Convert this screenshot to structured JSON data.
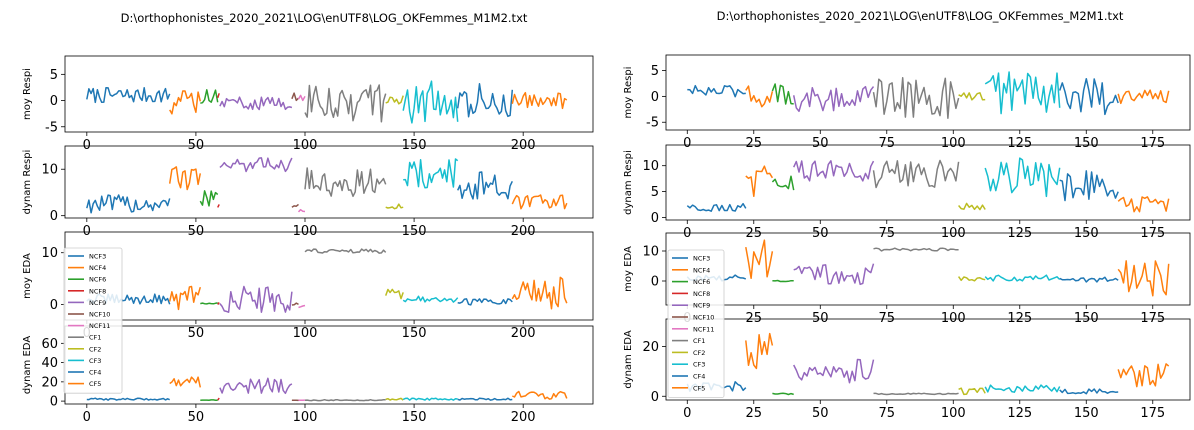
{
  "figures": [
    {
      "title": "D:\\orthophonistes_2020_2021\\LOG\\enUTF8\\LOG_OKFemmes_M1M2.txt"
    },
    {
      "title": "D:\\orthophonistes_2020_2021\\LOG\\enUTF8\\LOG_OKFemmes_M2M1.txt"
    }
  ],
  "colors": {
    "NCF3": "#1f77b4",
    "NCF4": "#ff7f0e",
    "NCF6": "#2ca02c",
    "NCF8": "#d62728",
    "NCF9": "#9467bd",
    "NCF10": "#8c564b",
    "NCF11": "#e377c2",
    "CF1": "#7f7f7f",
    "CF2": "#bcbd22",
    "CF3": "#17becf",
    "CF4": "#1f77b4",
    "CF5": "#ff7f0e"
  },
  "chart_data": [
    {
      "type": "line",
      "title": "D:\\orthophonistes_2020_2021\\LOG\\enUTF8\\LOG_OKFemmes_M1M2.txt",
      "xlim": [
        -10,
        232
      ],
      "xticks": [
        0,
        50,
        100,
        150,
        200
      ],
      "segments": [
        {
          "name": "NCF3",
          "x0": 0,
          "x1": 38,
          "pts": 40
        },
        {
          "name": "NCF4",
          "x0": 38,
          "x1": 52,
          "pts": 15
        },
        {
          "name": "NCF6",
          "x0": 52,
          "x1": 60,
          "pts": 9
        },
        {
          "name": "NCF8",
          "x0": 60,
          "x1": 60,
          "pts": 1
        },
        {
          "name": "NCF9",
          "x0": 61,
          "x1": 94,
          "pts": 34
        },
        {
          "name": "NCF10",
          "x0": 94,
          "x1": 97,
          "pts": 4
        },
        {
          "name": "NCF11",
          "x0": 97,
          "x1": 100,
          "pts": 4
        },
        {
          "name": "CF1",
          "x0": 100,
          "x1": 137,
          "pts": 38
        },
        {
          "name": "CF2",
          "x0": 137,
          "x1": 145,
          "pts": 9
        },
        {
          "name": "CF3",
          "x0": 145,
          "x1": 170,
          "pts": 26
        },
        {
          "name": "CF4",
          "x0": 170,
          "x1": 195,
          "pts": 26
        },
        {
          "name": "CF5",
          "x0": 195,
          "x1": 220,
          "pts": 26
        }
      ],
      "subplots": [
        {
          "ylabel": "moy Respi",
          "ylim": [
            -6,
            8.5
          ],
          "yticks": [
            -5,
            0,
            5
          ],
          "levels": {
            "NCF3": [
              1,
              1.5
            ],
            "NCF4": [
              -0.5,
              2.5
            ],
            "NCF6": [
              0.5,
              2
            ],
            "NCF8": [
              1,
              1
            ],
            "NCF9": [
              -0.5,
              1.2
            ],
            "NCF10": [
              0.8,
              1
            ],
            "NCF11": [
              0.5,
              0.5
            ],
            "CF1": [
              -0.5,
              4
            ],
            "CF2": [
              0,
              1
            ],
            "CF3": [
              0,
              4.5
            ],
            "CF4": [
              0,
              3.5
            ],
            "CF5": [
              0,
              1.5
            ]
          }
        },
        {
          "ylabel": "dynam Respi",
          "ylim": [
            -0.5,
            15
          ],
          "yticks": [
            0,
            10
          ],
          "levels": {
            "NCF3": [
              2.5,
              2
            ],
            "NCF4": [
              8,
              2.5
            ],
            "NCF6": [
              4,
              2
            ],
            "NCF8": [
              2,
              0.5
            ],
            "NCF9": [
              11,
              1.5
            ],
            "NCF10": [
              2,
              0.5
            ],
            "NCF11": [
              1,
              0.5
            ],
            "CF1": [
              7,
              3.5
            ],
            "CF2": [
              2,
              0.5
            ],
            "CF3": [
              9,
              3.5
            ],
            "CF4": [
              6.5,
              3
            ],
            "CF5": [
              3,
              1.5
            ]
          }
        },
        {
          "ylabel": "moy EDA",
          "ylim": [
            -3,
            14
          ],
          "yticks": [
            0,
            10
          ],
          "levels": {
            "NCF3": [
              1,
              1
            ],
            "NCF4": [
              1.5,
              2.5
            ],
            "NCF6": [
              0.2,
              0.1
            ],
            "NCF8": [
              0,
              0
            ],
            "NCF9": [
              1,
              2.5
            ],
            "NCF10": [
              0,
              0.3
            ],
            "NCF11": [
              -0.5,
              0.3
            ],
            "CF1": [
              10.3,
              0.4
            ],
            "CF2": [
              2,
              1
            ],
            "CF3": [
              1,
              0.6
            ],
            "CF4": [
              0.5,
              0.6
            ],
            "CF5": [
              2,
              3.5
            ]
          }
        },
        {
          "ylabel": "dynam EDA",
          "ylim": [
            -3,
            78
          ],
          "yticks": [
            0,
            20,
            40,
            60
          ],
          "levels": {
            "NCF3": [
              2,
              1
            ],
            "NCF4": [
              20,
              6
            ],
            "NCF6": [
              1,
              0.3
            ],
            "NCF8": [
              1,
              0.3
            ],
            "NCF9": [
              16,
              8
            ],
            "NCF10": [
              1,
              0.3
            ],
            "NCF11": [
              1,
              0.3
            ],
            "CF1": [
              1,
              0.5
            ],
            "CF2": [
              2,
              1
            ],
            "CF3": [
              2,
              1
            ],
            "CF4": [
              2,
              1
            ],
            "CF5": [
              6,
              4
            ]
          }
        }
      ],
      "legend": [
        "NCF3",
        "NCF4",
        "NCF6",
        "NCF8",
        "NCF9",
        "NCF10",
        "NCF11",
        "CF1",
        "CF2",
        "CF3",
        "CF4",
        "CF5"
      ]
    },
    {
      "type": "line",
      "title": "D:\\orthophonistes_2020_2021\\LOG\\enUTF8\\LOG_OKFemmes_M2M1.txt",
      "xlim": [
        -8,
        189
      ],
      "xticks": [
        0,
        25,
        50,
        75,
        100,
        125,
        150,
        175
      ],
      "segments": [
        {
          "name": "NCF3",
          "x0": 0,
          "x1": 22,
          "pts": 23
        },
        {
          "name": "NCF4",
          "x0": 22,
          "x1": 32,
          "pts": 11
        },
        {
          "name": "NCF6",
          "x0": 32,
          "x1": 40,
          "pts": 9
        },
        {
          "name": "NCF9",
          "x0": 40,
          "x1": 70,
          "pts": 31
        },
        {
          "name": "CF1",
          "x0": 70,
          "x1": 102,
          "pts": 33
        },
        {
          "name": "CF2",
          "x0": 102,
          "x1": 112,
          "pts": 11
        },
        {
          "name": "CF3",
          "x0": 112,
          "x1": 140,
          "pts": 29
        },
        {
          "name": "CF4",
          "x0": 140,
          "x1": 162,
          "pts": 23
        },
        {
          "name": "CF5",
          "x0": 162,
          "x1": 181,
          "pts": 20
        }
      ],
      "subplots": [
        {
          "ylabel": "moy Respi",
          "ylim": [
            -6.5,
            8
          ],
          "yticks": [
            -5,
            0,
            5
          ],
          "levels": {
            "NCF3": [
              1,
              1.2
            ],
            "NCF4": [
              0.5,
              2.5
            ],
            "NCF6": [
              0.5,
              2
            ],
            "NCF9": [
              -0.5,
              2.5
            ],
            "CF1": [
              -0.5,
              4.5
            ],
            "CF2": [
              0,
              1
            ],
            "CF3": [
              1,
              4.5
            ],
            "CF4": [
              0,
              3.5
            ],
            "CF5": [
              0,
              1.5
            ]
          }
        },
        {
          "ylabel": "dynam Respi",
          "ylim": [
            -0.5,
            14
          ],
          "yticks": [
            0,
            5,
            10
          ],
          "levels": {
            "NCF3": [
              2,
              0.8
            ],
            "NCF4": [
              7,
              3
            ],
            "NCF6": [
              6,
              2.5
            ],
            "NCF9": [
              9,
              2
            ],
            "CF1": [
              8,
              3
            ],
            "CF2": [
              2,
              0.8
            ],
            "CF3": [
              8,
              4
            ],
            "CF4": [
              6,
              3
            ],
            "CF5": [
              2.5,
              1.5
            ]
          }
        },
        {
          "ylabel": "moy EDA",
          "ylim": [
            -8,
            16
          ],
          "yticks": [
            0,
            10
          ],
          "levels": {
            "NCF3": [
              1,
              1
            ],
            "NCF4": [
              8,
              8
            ],
            "NCF6": [
              0,
              0.2
            ],
            "NCF9": [
              2,
              4
            ],
            "CF1": [
              10.5,
              0.5
            ],
            "CF2": [
              1,
              1
            ],
            "CF3": [
              1,
              1
            ],
            "CF4": [
              0.5,
              0.8
            ],
            "CF5": [
              1,
              6
            ]
          }
        },
        {
          "ylabel": "dynam EDA",
          "ylim": [
            -1.5,
            31
          ],
          "yticks": [
            0,
            20
          ],
          "levels": {
            "NCF3": [
              4,
              2
            ],
            "NCF4": [
              18,
              9
            ],
            "NCF6": [
              1,
              0.3
            ],
            "NCF9": [
              10,
              5
            ],
            "CF1": [
              1,
              0.3
            ],
            "CF2": [
              2,
              1.5
            ],
            "CF3": [
              3,
              1.5
            ],
            "CF4": [
              2,
              1
            ],
            "CF5": [
              8,
              5
            ]
          }
        }
      ],
      "legend": [
        "NCF3",
        "NCF4",
        "NCF6",
        "NCF8",
        "NCF9",
        "NCF10",
        "NCF11",
        "CF1",
        "CF2",
        "CF3",
        "CF4",
        "CF5"
      ]
    }
  ]
}
